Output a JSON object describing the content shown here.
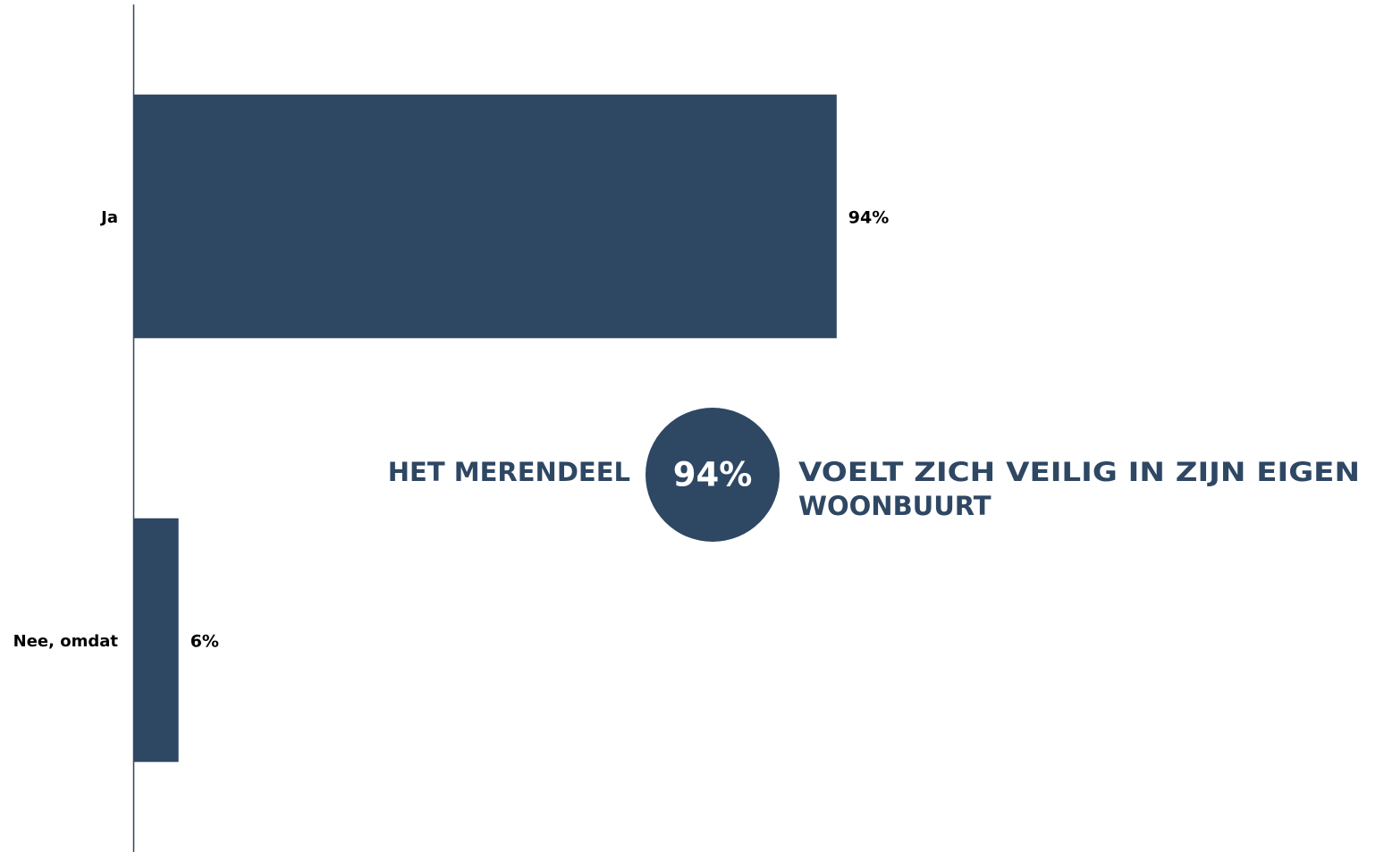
{
  "chart_data": {
    "type": "bar",
    "orientation": "horizontal",
    "categories": [
      "Ja",
      "Nee, omdat"
    ],
    "values": [
      94,
      6
    ],
    "value_labels": [
      "94%",
      "6%"
    ],
    "color": "#2e4763",
    "xlim": [
      0,
      100
    ],
    "annotation": {
      "left": "HET MERENDEEL",
      "circle": "94%",
      "right": [
        "VOELT ZICH VEILIG IN ZIJN EIGEN",
        "WOONBUURT"
      ]
    }
  }
}
